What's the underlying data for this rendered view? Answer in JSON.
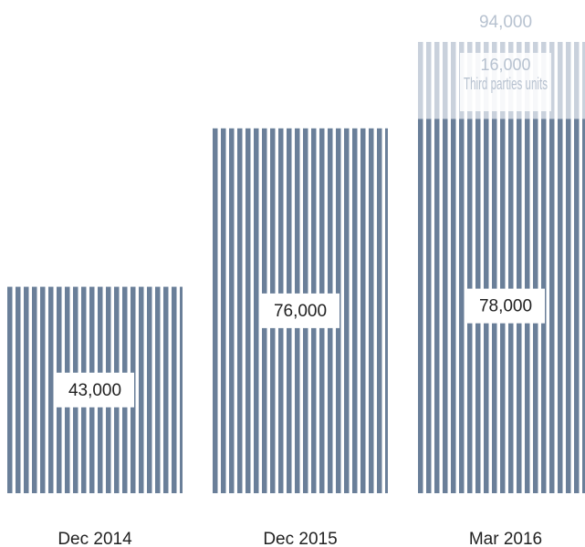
{
  "chart_data": {
    "type": "stacked-bar",
    "categories": [
      "Dec 2014",
      "Dec 2015",
      "Mar 2016"
    ],
    "series": [
      {
        "values": [
          43000,
          76000,
          78000
        ],
        "value_labels": [
          "43,000",
          "76,000",
          "78,000"
        ],
        "color": "#6a7f99"
      },
      {
        "name": "Third parties units",
        "values": [
          null,
          null,
          16000
        ],
        "value_labels": [
          null,
          null,
          "16,000"
        ],
        "color": "#c9d1dc"
      }
    ],
    "totals": [
      null,
      null,
      94000
    ],
    "total_labels": [
      null,
      null,
      "94,000"
    ]
  }
}
